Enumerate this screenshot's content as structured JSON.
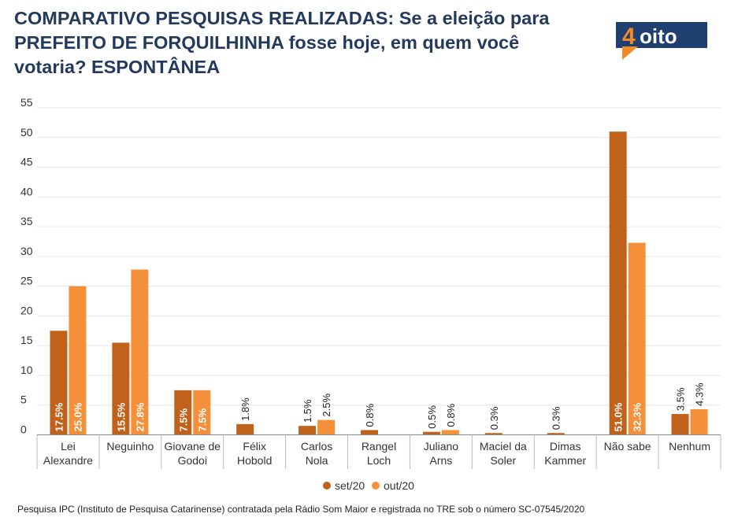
{
  "title": "COMPARATIVO PESQUISAS REALIZADAS: Se a eleição para PREFEITO DE FORQUILHINHA fosse hoje, em quem você votaria? ESPONTÂNEA",
  "logo": {
    "text": "4oito",
    "digit": "4",
    "word": "oito"
  },
  "colors": {
    "set20": "#c0621b",
    "out20": "#f5903a",
    "title": "#233a5e",
    "logo_bg": "#1f3f70",
    "logo_accent": "#f08a24"
  },
  "chart_data": {
    "type": "bar",
    "categories": [
      [
        "Lei",
        "Alexandre"
      ],
      [
        "Neguinho"
      ],
      [
        "Giovane de",
        "Godoi"
      ],
      [
        "Félix",
        "Hobold"
      ],
      [
        "Carlos",
        "Nola"
      ],
      [
        "Rangel",
        "Loch"
      ],
      [
        "Juliano",
        "Arns"
      ],
      [
        "Maciel da",
        "Soler"
      ],
      [
        "Dimas",
        "Kammer"
      ],
      [
        "Não sabe"
      ],
      [
        "Nenhum"
      ]
    ],
    "series": [
      {
        "name": "set/20",
        "values": [
          17.5,
          15.5,
          7.5,
          1.8,
          1.5,
          0.8,
          0.5,
          0.3,
          0.3,
          51.0,
          3.5
        ],
        "labels": [
          "17.5%",
          "15.5%",
          "7.5%",
          "1.8%",
          "1.5%",
          "0.8%",
          "0.5%",
          "0.3%",
          "0.3%",
          "51.0%",
          "3.5%"
        ]
      },
      {
        "name": "out/20",
        "values": [
          25.0,
          27.8,
          7.5,
          null,
          2.5,
          null,
          0.8,
          null,
          null,
          32.3,
          4.3
        ],
        "labels": [
          "25.0%",
          "27.8%",
          "7.5%",
          "",
          "2.5%",
          "",
          "0.8%",
          "",
          "",
          "32.3%",
          "4.3%"
        ]
      }
    ],
    "ylim": [
      0,
      55
    ],
    "yticks": [
      0,
      5,
      10,
      15,
      20,
      25,
      30,
      35,
      40,
      45,
      50,
      55
    ],
    "grid": true,
    "legend": "bottom-center"
  },
  "footer": "Pesquisa IPC (Instituto de Pesquisa Catarinense) contratada pela Rádio Som Maior e registrada no TRE sob o número SC-07545/2020"
}
